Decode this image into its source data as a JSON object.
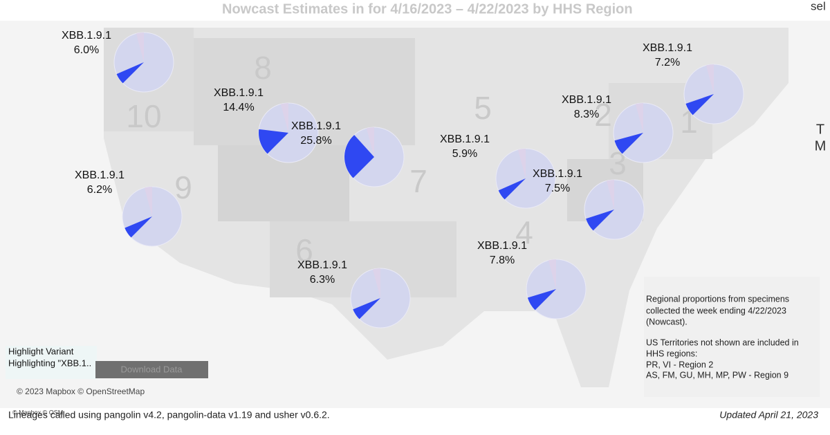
{
  "title": "Nowcast Estimates in for 4/16/2023 – 4/22/2023 by HHS Region",
  "edge_text": {
    "top_right": "sel",
    "right_1": "T",
    "right_2": "M"
  },
  "region_numbers": [
    "10",
    "8",
    "5",
    "2",
    "1",
    "3",
    "7",
    "9",
    "6",
    "4"
  ],
  "pies": [
    {
      "variant": "XBB.1.9.1",
      "share": 6.0,
      "share_label": "6.0%"
    },
    {
      "variant": "XBB.1.9.1",
      "share": 14.4,
      "share_label": "14.4%"
    },
    {
      "variant": "XBB.1.9.1",
      "share": 25.8,
      "share_label": "25.8%"
    },
    {
      "variant": "XBB.1.9.1",
      "share": 5.9,
      "share_label": "5.9%"
    },
    {
      "variant": "XBB.1.9.1",
      "share": 8.3,
      "share_label": "8.3%"
    },
    {
      "variant": "XBB.1.9.1",
      "share": 7.2,
      "share_label": "7.2%"
    },
    {
      "variant": "XBB.1.9.1",
      "share": 7.5,
      "share_label": "7.5%"
    },
    {
      "variant": "XBB.1.9.1",
      "share": 6.2,
      "share_label": "6.2%"
    },
    {
      "variant": "XBB.1.9.1",
      "share": 6.3,
      "share_label": "6.3%"
    },
    {
      "variant": "XBB.1.9.1",
      "share": 7.8,
      "share_label": "7.8%"
    }
  ],
  "highlight": {
    "title": "Highlight Variant",
    "value": "Highlighting \"XBB.1..",
    "button": "Download Data"
  },
  "attribution": "© 2023 Mapbox © OpenStreetMap",
  "attribution_small": "© Mapbox © OSM",
  "note": [
    "Regional proportions from specimens",
    "collected the week ending 4/22/2023",
    "(Nowcast).",
    "US Territories not shown are included in",
    "HHS regions:",
    "PR, VI - Region 2",
    "AS, FM, GU, MH, MP, PW - Region 9"
  ],
  "footer": "Lineages called using pangolin v4.2, pangolin-data v1.19 and usher v0.6.2.",
  "updated": "Updated April 21, 2023"
}
